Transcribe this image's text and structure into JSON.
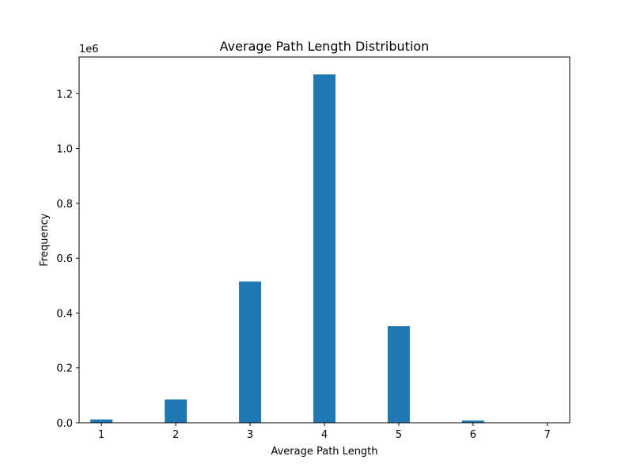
{
  "chart_data": {
    "type": "bar",
    "title": "Average Path Length Distribution",
    "xlabel": "Average Path Length",
    "ylabel": "Frequency",
    "y_offset_label": "1e6",
    "x": [
      1,
      2,
      3,
      4,
      5,
      6,
      7
    ],
    "values": [
      12000,
      85000,
      515000,
      1270000,
      352000,
      8000,
      0
    ],
    "xlim": [
      0.7,
      7.3
    ],
    "ylim": [
      0,
      1333500
    ],
    "xticks": [
      1,
      2,
      3,
      4,
      5,
      6,
      7
    ],
    "xtick_labels": [
      "1",
      "2",
      "3",
      "4",
      "5",
      "6",
      "7"
    ],
    "yticks": [
      0,
      200000,
      400000,
      600000,
      800000,
      1000000,
      1200000
    ],
    "ytick_labels": [
      "0.0",
      "0.2",
      "0.4",
      "0.6",
      "0.8",
      "1.0",
      "1.2"
    ],
    "bar_color": "#1f77b4",
    "grid": false,
    "legend": "none"
  }
}
